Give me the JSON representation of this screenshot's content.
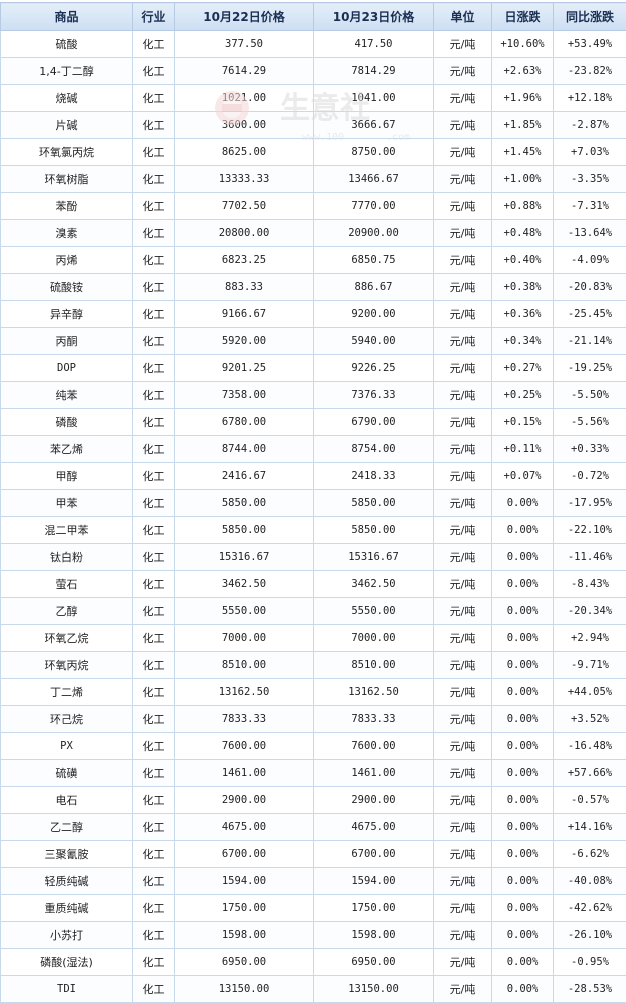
{
  "table": {
    "headers": [
      "商品",
      "行业",
      "10月22日价格",
      "10月23日价格",
      "单位",
      "日涨跌",
      "同比涨跌"
    ],
    "rows": [
      {
        "name": "硫酸",
        "industry": "化工",
        "p1": "377.50",
        "p2": "417.50",
        "unit": "元/吨",
        "day": "+10.60%",
        "yoy": "+53.49%"
      },
      {
        "name": "1,4-丁二醇",
        "industry": "化工",
        "p1": "7614.29",
        "p2": "7814.29",
        "unit": "元/吨",
        "day": "+2.63%",
        "yoy": "-23.82%"
      },
      {
        "name": "烧碱",
        "industry": "化工",
        "p1": "1021.00",
        "p2": "1041.00",
        "unit": "元/吨",
        "day": "+1.96%",
        "yoy": "+12.18%"
      },
      {
        "name": "片碱",
        "industry": "化工",
        "p1": "3600.00",
        "p2": "3666.67",
        "unit": "元/吨",
        "day": "+1.85%",
        "yoy": "-2.87%"
      },
      {
        "name": "环氧氯丙烷",
        "industry": "化工",
        "p1": "8625.00",
        "p2": "8750.00",
        "unit": "元/吨",
        "day": "+1.45%",
        "yoy": "+7.03%"
      },
      {
        "name": "环氧树脂",
        "industry": "化工",
        "p1": "13333.33",
        "p2": "13466.67",
        "unit": "元/吨",
        "day": "+1.00%",
        "yoy": "-3.35%"
      },
      {
        "name": "苯酚",
        "industry": "化工",
        "p1": "7702.50",
        "p2": "7770.00",
        "unit": "元/吨",
        "day": "+0.88%",
        "yoy": "-7.31%"
      },
      {
        "name": "溴素",
        "industry": "化工",
        "p1": "20800.00",
        "p2": "20900.00",
        "unit": "元/吨",
        "day": "+0.48%",
        "yoy": "-13.64%"
      },
      {
        "name": "丙烯",
        "industry": "化工",
        "p1": "6823.25",
        "p2": "6850.75",
        "unit": "元/吨",
        "day": "+0.40%",
        "yoy": "-4.09%"
      },
      {
        "name": "硫酸铵",
        "industry": "化工",
        "p1": "883.33",
        "p2": "886.67",
        "unit": "元/吨",
        "day": "+0.38%",
        "yoy": "-20.83%"
      },
      {
        "name": "异辛醇",
        "industry": "化工",
        "p1": "9166.67",
        "p2": "9200.00",
        "unit": "元/吨",
        "day": "+0.36%",
        "yoy": "-25.45%"
      },
      {
        "name": "丙酮",
        "industry": "化工",
        "p1": "5920.00",
        "p2": "5940.00",
        "unit": "元/吨",
        "day": "+0.34%",
        "yoy": "-21.14%"
      },
      {
        "name": "DOP",
        "industry": "化工",
        "p1": "9201.25",
        "p2": "9226.25",
        "unit": "元/吨",
        "day": "+0.27%",
        "yoy": "-19.25%"
      },
      {
        "name": "纯苯",
        "industry": "化工",
        "p1": "7358.00",
        "p2": "7376.33",
        "unit": "元/吨",
        "day": "+0.25%",
        "yoy": "-5.50%"
      },
      {
        "name": "磷酸",
        "industry": "化工",
        "p1": "6780.00",
        "p2": "6790.00",
        "unit": "元/吨",
        "day": "+0.15%",
        "yoy": "-5.56%"
      },
      {
        "name": "苯乙烯",
        "industry": "化工",
        "p1": "8744.00",
        "p2": "8754.00",
        "unit": "元/吨",
        "day": "+0.11%",
        "yoy": "+0.33%"
      },
      {
        "name": "甲醇",
        "industry": "化工",
        "p1": "2416.67",
        "p2": "2418.33",
        "unit": "元/吨",
        "day": "+0.07%",
        "yoy": "-0.72%"
      },
      {
        "name": "甲苯",
        "industry": "化工",
        "p1": "5850.00",
        "p2": "5850.00",
        "unit": "元/吨",
        "day": "0.00%",
        "yoy": "-17.95%"
      },
      {
        "name": "混二甲苯",
        "industry": "化工",
        "p1": "5850.00",
        "p2": "5850.00",
        "unit": "元/吨",
        "day": "0.00%",
        "yoy": "-22.10%"
      },
      {
        "name": "钛白粉",
        "industry": "化工",
        "p1": "15316.67",
        "p2": "15316.67",
        "unit": "元/吨",
        "day": "0.00%",
        "yoy": "-11.46%"
      },
      {
        "name": "萤石",
        "industry": "化工",
        "p1": "3462.50",
        "p2": "3462.50",
        "unit": "元/吨",
        "day": "0.00%",
        "yoy": "-8.43%"
      },
      {
        "name": "乙醇",
        "industry": "化工",
        "p1": "5550.00",
        "p2": "5550.00",
        "unit": "元/吨",
        "day": "0.00%",
        "yoy": "-20.34%"
      },
      {
        "name": "环氧乙烷",
        "industry": "化工",
        "p1": "7000.00",
        "p2": "7000.00",
        "unit": "元/吨",
        "day": "0.00%",
        "yoy": "+2.94%"
      },
      {
        "name": "环氧丙烷",
        "industry": "化工",
        "p1": "8510.00",
        "p2": "8510.00",
        "unit": "元/吨",
        "day": "0.00%",
        "yoy": "-9.71%"
      },
      {
        "name": "丁二烯",
        "industry": "化工",
        "p1": "13162.50",
        "p2": "13162.50",
        "unit": "元/吨",
        "day": "0.00%",
        "yoy": "+44.05%"
      },
      {
        "name": "环己烷",
        "industry": "化工",
        "p1": "7833.33",
        "p2": "7833.33",
        "unit": "元/吨",
        "day": "0.00%",
        "yoy": "+3.52%"
      },
      {
        "name": "PX",
        "industry": "化工",
        "p1": "7600.00",
        "p2": "7600.00",
        "unit": "元/吨",
        "day": "0.00%",
        "yoy": "-16.48%"
      },
      {
        "name": "硫磺",
        "industry": "化工",
        "p1": "1461.00",
        "p2": "1461.00",
        "unit": "元/吨",
        "day": "0.00%",
        "yoy": "+57.66%"
      },
      {
        "name": "电石",
        "industry": "化工",
        "p1": "2900.00",
        "p2": "2900.00",
        "unit": "元/吨",
        "day": "0.00%",
        "yoy": "-0.57%"
      },
      {
        "name": "乙二醇",
        "industry": "化工",
        "p1": "4675.00",
        "p2": "4675.00",
        "unit": "元/吨",
        "day": "0.00%",
        "yoy": "+14.16%"
      },
      {
        "name": "三聚氰胺",
        "industry": "化工",
        "p1": "6700.00",
        "p2": "6700.00",
        "unit": "元/吨",
        "day": "0.00%",
        "yoy": "-6.62%"
      },
      {
        "name": "轻质纯碱",
        "industry": "化工",
        "p1": "1594.00",
        "p2": "1594.00",
        "unit": "元/吨",
        "day": "0.00%",
        "yoy": "-40.08%"
      },
      {
        "name": "重质纯碱",
        "industry": "化工",
        "p1": "1750.00",
        "p2": "1750.00",
        "unit": "元/吨",
        "day": "0.00%",
        "yoy": "-42.62%"
      },
      {
        "name": "小苏打",
        "industry": "化工",
        "p1": "1598.00",
        "p2": "1598.00",
        "unit": "元/吨",
        "day": "0.00%",
        "yoy": "-26.10%"
      },
      {
        "name": "磷酸(湿法)",
        "industry": "化工",
        "p1": "6950.00",
        "p2": "6950.00",
        "unit": "元/吨",
        "day": "0.00%",
        "yoy": "-0.95%"
      },
      {
        "name": "TDI",
        "industry": "化工",
        "p1": "13150.00",
        "p2": "13150.00",
        "unit": "元/吨",
        "day": "0.00%",
        "yoy": "-28.53%"
      }
    ]
  },
  "watermark": {
    "brand": "生意社",
    "url_fragment": "www.100",
    "url_tail": ".com"
  },
  "colors": {
    "up": "#e0202a",
    "down": "#1a9a2a",
    "product_link": "#1f5aa6",
    "header_bg": "#d6e5f6"
  }
}
